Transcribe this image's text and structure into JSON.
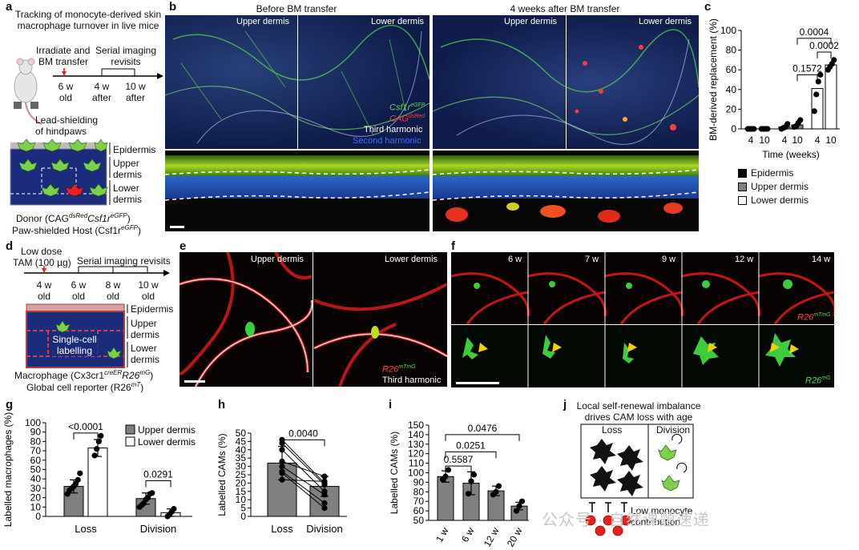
{
  "panels": {
    "a": {
      "label": "a",
      "title_lines": [
        "Tracking of monocyte-derived skin",
        "macrophage turnover in live mice"
      ],
      "irradiate": [
        "Irradiate and",
        "BM transfer"
      ],
      "serial": [
        "Serial imaging",
        "revisits"
      ],
      "timepoints": [
        [
          "6 w",
          "old"
        ],
        [
          "4 w",
          "after"
        ],
        [
          "10 w",
          "after"
        ]
      ],
      "shield": [
        "Lead-shielding",
        "of hindpaws"
      ],
      "layers": [
        "Epidermis",
        "Upper",
        "dermis",
        "Lower",
        "dermis"
      ],
      "donor": "Donor (CAG",
      "donor_sup1": "dsRed",
      "donor_mid": "Csf1r",
      "donor_sup2": "eGFP",
      "donor_end": ")",
      "host": "Paw-shielded Host (Csf1r",
      "host_sup": "eGFP",
      "host_end": ")"
    },
    "b": {
      "label": "b",
      "before": "Before BM transfer",
      "after": "4 weeks after BM transfer",
      "upper": "Upper dermis",
      "lower": "Lower dermis",
      "legend": [
        {
          "text": "Csf1r",
          "sup": "eGFP",
          "color": "#5fd35f"
        },
        {
          "text": "CAG",
          "sup": "dsRed",
          "color": "#ff3b3b"
        },
        {
          "text": "Third harmonic",
          "sup": "",
          "color": "#ffffff"
        },
        {
          "text": "Second harmonic",
          "sup": "",
          "color": "#3b6cff"
        }
      ]
    },
    "c": {
      "label": "c",
      "legend": [
        "Epidermis",
        "Upper dermis",
        "Lower dermis"
      ],
      "legend_colors": [
        "#000000",
        "#808080",
        "#ffffff"
      ]
    },
    "d": {
      "label": "d",
      "tam": [
        "Low dose",
        "TAM (100 µg)"
      ],
      "serial": "Serial imaging revisits",
      "timepoints": [
        [
          "4 w",
          "old"
        ],
        [
          "6 w",
          "old"
        ],
        [
          "8 w",
          "old"
        ],
        [
          "10 w",
          "old"
        ]
      ],
      "layers": [
        "Epidermis",
        "Upper",
        "dermis",
        "Lower",
        "dermis"
      ],
      "single": [
        "Single-cell",
        "labelling"
      ],
      "macro": "Macrophage (Cx3cr1",
      "macro_sup1": "creER",
      "macro_mid": "R26",
      "macro_sup2": "mG",
      "macro_end": ")",
      "global": "Global cell reporter (R26",
      "global_sup": "mT",
      "global_end": ")"
    },
    "e": {
      "label": "e",
      "upper": "Upper dermis",
      "lower": "Lower dermis",
      "r26": "R26",
      "r26_sup": "mTmG",
      "third": "Third harmonic"
    },
    "f": {
      "label": "f",
      "times": [
        "6 w",
        "7 w",
        "9 w",
        "12 w",
        "14 w"
      ],
      "r26mtmg": "R26",
      "r26mtmg_sup": "mTmG",
      "r26mg": "R26",
      "r26mg_sup": "mG"
    },
    "j": {
      "label": "j",
      "title_lines": [
        "Local self-renewal imbalance",
        "drives CAM loss with age"
      ],
      "loss": "Loss",
      "division": "Division",
      "low_lines": [
        "Low monocyte",
        "contribution"
      ]
    }
  },
  "chart_data": [
    {
      "id": "c",
      "type": "bar",
      "ylabel": "BM-derived replacement (%)",
      "xlabel": "Time (weeks)",
      "ylim": [
        0,
        100
      ],
      "yticks": [
        0,
        20,
        40,
        60,
        80,
        100
      ],
      "categories": [
        "4",
        "10",
        "4",
        "10",
        "4",
        "10"
      ],
      "groups": [
        "Epidermis",
        "Epidermis",
        "Upper dermis",
        "Upper dermis",
        "Lower dermis",
        "Lower dermis"
      ],
      "values": [
        0.5,
        0.5,
        2,
        4,
        41,
        65
      ],
      "bar_colors": [
        "#000000",
        "#000000",
        "#808080",
        "#808080",
        "#ffffff",
        "#ffffff"
      ],
      "points": [
        [
          0,
          0,
          0,
          0
        ],
        [
          0,
          0,
          0,
          0
        ],
        [
          0,
          1,
          2,
          5
        ],
        [
          2,
          3,
          6,
          9
        ],
        [
          18,
          35,
          48,
          55
        ],
        [
          60,
          63,
          66,
          70
        ]
      ],
      "pvalues": [
        {
          "text": "0.0004",
          "from": 3,
          "to": 5,
          "level": 92
        },
        {
          "text": "0.0002",
          "from": 4,
          "to": 5,
          "level": 78
        },
        {
          "text": "0.1572",
          "from": 3,
          "to": 4,
          "level": 55
        }
      ]
    },
    {
      "id": "g",
      "type": "bar",
      "ylabel": "Labelled macrophages (%)",
      "ylim": [
        0,
        100
      ],
      "yticks": [
        0,
        10,
        20,
        30,
        40,
        50,
        60,
        70,
        80,
        90,
        100
      ],
      "categories": [
        "Loss",
        "Division"
      ],
      "series": [
        {
          "name": "Upper dermis",
          "color": "#808080",
          "values": [
            32,
            19
          ],
          "errors": [
            7,
            6
          ],
          "points": [
            [
              24,
              28,
              30,
              32,
              35,
              39,
              46
            ],
            [
              10,
              12,
              14,
              18,
              20,
              24,
              25
            ]
          ]
        },
        {
          "name": "Lower dermis",
          "color": "#ffffff",
          "values": [
            73,
            4
          ],
          "errors": [
            9,
            4
          ],
          "points": [
            [
              65,
              72,
              80,
              86
            ],
            [
              0,
              2,
              5,
              8
            ]
          ]
        }
      ],
      "pvalues": [
        {
          "text": "<0.0001",
          "category": 0,
          "level": 89
        },
        {
          "text": "0.0291",
          "category": 1,
          "level": 38
        }
      ]
    },
    {
      "id": "h",
      "type": "bar",
      "ylabel": "Labelled CAMs (%)",
      "ylim": [
        0,
        50
      ],
      "yticks": [
        0,
        5,
        10,
        15,
        20,
        25,
        30,
        35,
        40,
        45,
        50
      ],
      "categories": [
        "Loss",
        "Division"
      ],
      "values": [
        32,
        18
      ],
      "errors": [
        10,
        6
      ],
      "color": "#808080",
      "pairs": [
        [
          46,
          20
        ],
        [
          44,
          19
        ],
        [
          40,
          15
        ],
        [
          33,
          24
        ],
        [
          30,
          13
        ],
        [
          27,
          8
        ],
        [
          26,
          5
        ],
        [
          22,
          21
        ]
      ],
      "pvalues": [
        {
          "text": "0.0040",
          "level": 46
        }
      ]
    },
    {
      "id": "i",
      "type": "bar",
      "ylabel": "Labelled CAMs (%)",
      "ylim": [
        50,
        150
      ],
      "yticks": [
        50,
        60,
        70,
        80,
        90,
        100,
        110,
        120,
        130,
        140,
        150
      ],
      "categories": [
        "1 w",
        "6 w",
        "12 w",
        "20 w"
      ],
      "values": [
        96,
        89,
        81,
        65
      ],
      "errors": [
        6,
        12,
        5,
        4
      ],
      "color": "#808080",
      "points": [
        [
          93,
          96,
          103
        ],
        [
          78,
          91,
          98
        ],
        [
          77,
          80,
          86
        ],
        [
          60,
          65,
          70
        ]
      ],
      "pvalues": [
        {
          "text": "0.0476",
          "from": 0,
          "to": 3,
          "level": 140
        },
        {
          "text": "0.0251",
          "from": 0,
          "to": 2,
          "level": 122
        },
        {
          "text": "0.5587",
          "from": 0,
          "to": 1,
          "level": 107
        }
      ]
    }
  ],
  "watermark": "公众号 · 自然课题速递"
}
